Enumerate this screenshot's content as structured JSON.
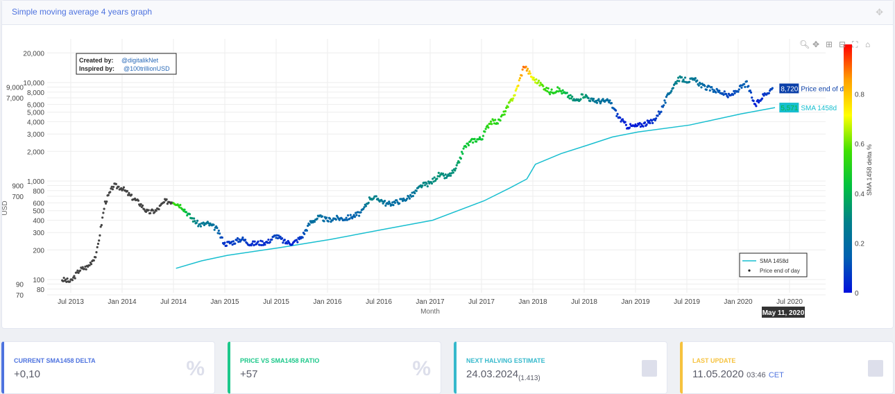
{
  "panel": {
    "title": "Simple moving average 4 years graph"
  },
  "credits": {
    "created_label": "Created by:",
    "created_value": "@digitalikNet",
    "inspired_label": "Inspired by:",
    "inspired_value": "@100trillionUSD"
  },
  "modebar": [
    "zoom-icon",
    "pan-icon",
    "zoom-in-icon",
    "zoom-out-icon",
    "autoscale-icon",
    "home-icon"
  ],
  "chart_data": {
    "type": "scatter",
    "xlabel": "Month",
    "ylabel": "USD",
    "yscale": "log",
    "ylim": [
      70,
      25000
    ],
    "xlim": [
      "2013-04",
      "2020-08"
    ],
    "x_ticks": [
      "Jul 2013",
      "Jan 2014",
      "Jul 2014",
      "Jan 2015",
      "Jul 2015",
      "Jan 2016",
      "Jul 2016",
      "Jan 2017",
      "Jul 2017",
      "Jan 2018",
      "Jul 2018",
      "Jan 2019",
      "Jul 2019",
      "Jan 2020",
      "Jul 2020"
    ],
    "y_ticks": [
      70,
      80,
      90,
      100,
      200,
      300,
      400,
      500,
      600,
      700,
      800,
      900,
      1000,
      2000,
      3000,
      4000,
      5000,
      6000,
      7000,
      8000,
      9000,
      10000,
      20000
    ],
    "y_tick_labels": [
      "70",
      "80",
      "90",
      "100",
      "200",
      "300",
      "400",
      "500",
      "600",
      "700",
      "800",
      "900",
      "1,000",
      "2,000",
      "3,000",
      "4,000",
      "5,000",
      "6,000",
      "7,000",
      "8,000",
      "9,000",
      "10,000",
      "20,000"
    ],
    "grid": true,
    "legend_placement": "bottom-right",
    "colorbar": {
      "title": "SMA 1458 delta %",
      "ticks": [
        0,
        0.2,
        0.4,
        0.6,
        0.8
      ],
      "tick_labels": [
        "0",
        "0.2",
        "0.4",
        "0.6",
        "0.8"
      ],
      "range": [
        0,
        1
      ],
      "colors": [
        "#0010dd",
        "#0060b0",
        "#00808a",
        "#00c040",
        "#40e000",
        "#ffff00",
        "#ffa000",
        "#ff0000"
      ]
    },
    "series": [
      {
        "name": "Price end of day",
        "marker_color_no_delta": "#444444",
        "points": [
          [
            "2013-06",
            100,
            null
          ],
          [
            "2013-07",
            95,
            null
          ],
          [
            "2013-08",
            125,
            null
          ],
          [
            "2013-09",
            135,
            null
          ],
          [
            "2013-10",
            180,
            null
          ],
          [
            "2013-11",
            600,
            null
          ],
          [
            "2013-12",
            900,
            null
          ],
          [
            "2014-01",
            850,
            null
          ],
          [
            "2014-02",
            700,
            null
          ],
          [
            "2014-03",
            600,
            null
          ],
          [
            "2014-04",
            480,
            null
          ],
          [
            "2014-05",
            500,
            null
          ],
          [
            "2014-06",
            620,
            null
          ],
          [
            "2014-07",
            620,
            0.55
          ],
          [
            "2014-08",
            550,
            0.5
          ],
          [
            "2014-09",
            430,
            0.35
          ],
          [
            "2014-10",
            360,
            0.25
          ],
          [
            "2014-11",
            370,
            0.25
          ],
          [
            "2014-12",
            330,
            0.2
          ],
          [
            "2015-01",
            230,
            0.05
          ],
          [
            "2015-02",
            240,
            0.08
          ],
          [
            "2015-03",
            260,
            0.1
          ],
          [
            "2015-04",
            230,
            0.05
          ],
          [
            "2015-05",
            235,
            0.05
          ],
          [
            "2015-06",
            240,
            0.05
          ],
          [
            "2015-07",
            280,
            0.1
          ],
          [
            "2015-08",
            240,
            0.05
          ],
          [
            "2015-09",
            235,
            0.03
          ],
          [
            "2015-10",
            270,
            0.08
          ],
          [
            "2015-11",
            380,
            0.2
          ],
          [
            "2015-12",
            430,
            0.22
          ],
          [
            "2016-01",
            400,
            0.18
          ],
          [
            "2016-02",
            420,
            0.18
          ],
          [
            "2016-03",
            415,
            0.15
          ],
          [
            "2016-04",
            440,
            0.15
          ],
          [
            "2016-05",
            480,
            0.18
          ],
          [
            "2016-06",
            680,
            0.3
          ],
          [
            "2016-07",
            660,
            0.27
          ],
          [
            "2016-08",
            580,
            0.2
          ],
          [
            "2016-09",
            610,
            0.2
          ],
          [
            "2016-10",
            650,
            0.2
          ],
          [
            "2016-11",
            730,
            0.22
          ],
          [
            "2016-12",
            900,
            0.3
          ],
          [
            "2017-01",
            950,
            0.3
          ],
          [
            "2017-02",
            1150,
            0.33
          ],
          [
            "2017-03",
            1100,
            0.3
          ],
          [
            "2017-04",
            1300,
            0.33
          ],
          [
            "2017-05",
            2200,
            0.45
          ],
          [
            "2017-06",
            2600,
            0.47
          ],
          [
            "2017-07",
            2700,
            0.45
          ],
          [
            "2017-08",
            4000,
            0.55
          ],
          [
            "2017-09",
            4000,
            0.5
          ],
          [
            "2017-10",
            5500,
            0.58
          ],
          [
            "2017-11",
            8000,
            0.7
          ],
          [
            "2017-12",
            15000,
            0.92
          ],
          [
            "2018-01",
            11000,
            0.7
          ],
          [
            "2018-02",
            9500,
            0.6
          ],
          [
            "2018-03",
            8000,
            0.5
          ],
          [
            "2018-04",
            8500,
            0.5
          ],
          [
            "2018-05",
            7500,
            0.4
          ],
          [
            "2018-06",
            6500,
            0.3
          ],
          [
            "2018-07",
            7500,
            0.35
          ],
          [
            "2018-08",
            6500,
            0.25
          ],
          [
            "2018-09",
            6500,
            0.22
          ],
          [
            "2018-10",
            6400,
            0.2
          ],
          [
            "2018-11",
            4500,
            0.05
          ],
          [
            "2018-12",
            3600,
            0.02
          ],
          [
            "2019-01",
            3600,
            0.02
          ],
          [
            "2019-02",
            3800,
            0.03
          ],
          [
            "2019-03",
            4000,
            0.05
          ],
          [
            "2019-04",
            5300,
            0.1
          ],
          [
            "2019-05",
            8000,
            0.22
          ],
          [
            "2019-06",
            11000,
            0.3
          ],
          [
            "2019-07",
            10500,
            0.26
          ],
          [
            "2019-08",
            10500,
            0.24
          ],
          [
            "2019-09",
            9000,
            0.18
          ],
          [
            "2019-10",
            8500,
            0.15
          ],
          [
            "2019-11",
            8000,
            0.12
          ],
          [
            "2019-12",
            7200,
            0.08
          ],
          [
            "2020-01",
            8500,
            0.12
          ],
          [
            "2020-02",
            9800,
            0.15
          ],
          [
            "2020-03",
            5800,
            0.02
          ],
          [
            "2020-04",
            7500,
            0.06
          ],
          [
            "2020-05",
            8720,
            0.1
          ]
        ],
        "last_label": "8,720",
        "label_color": "#0a3fa8"
      },
      {
        "name": "SMA 1458d",
        "color": "#17becf",
        "points": [
          [
            "2014-07",
            130
          ],
          [
            "2014-10",
            155
          ],
          [
            "2015-01",
            176
          ],
          [
            "2015-07",
            210
          ],
          [
            "2016-01",
            255
          ],
          [
            "2016-07",
            320
          ],
          [
            "2017-01",
            400
          ],
          [
            "2017-07",
            630
          ],
          [
            "2017-10",
            850
          ],
          [
            "2017-12",
            1050
          ],
          [
            "2018-01",
            1480
          ],
          [
            "2018-04",
            1900
          ],
          [
            "2018-07",
            2300
          ],
          [
            "2018-10",
            2800
          ],
          [
            "2019-01",
            3150
          ],
          [
            "2019-07",
            3700
          ],
          [
            "2020-01",
            4800
          ],
          [
            "2020-05",
            5571
          ]
        ],
        "last_label": "5,571"
      }
    ],
    "hover_x_label": "May 11, 2020"
  },
  "cards": [
    {
      "label": "Current SMA1458 delta",
      "value": "+0,10",
      "icon": "percent-icon",
      "color": "#4e73df"
    },
    {
      "label": "Price vs SMA1458 ratio",
      "value": "+57",
      "icon": "percent-icon",
      "color": "#1cc88a"
    },
    {
      "label": "Next halving estimate",
      "value": "24.03.2024",
      "sub": "(1.413)",
      "icon": "calendar-icon",
      "color": "#36b9cc"
    },
    {
      "label": "Last update",
      "value": "11.05.2020",
      "sub": "03:46",
      "tz": "CET",
      "icon": "calendar-icon",
      "color": "#f6c23e"
    }
  ]
}
